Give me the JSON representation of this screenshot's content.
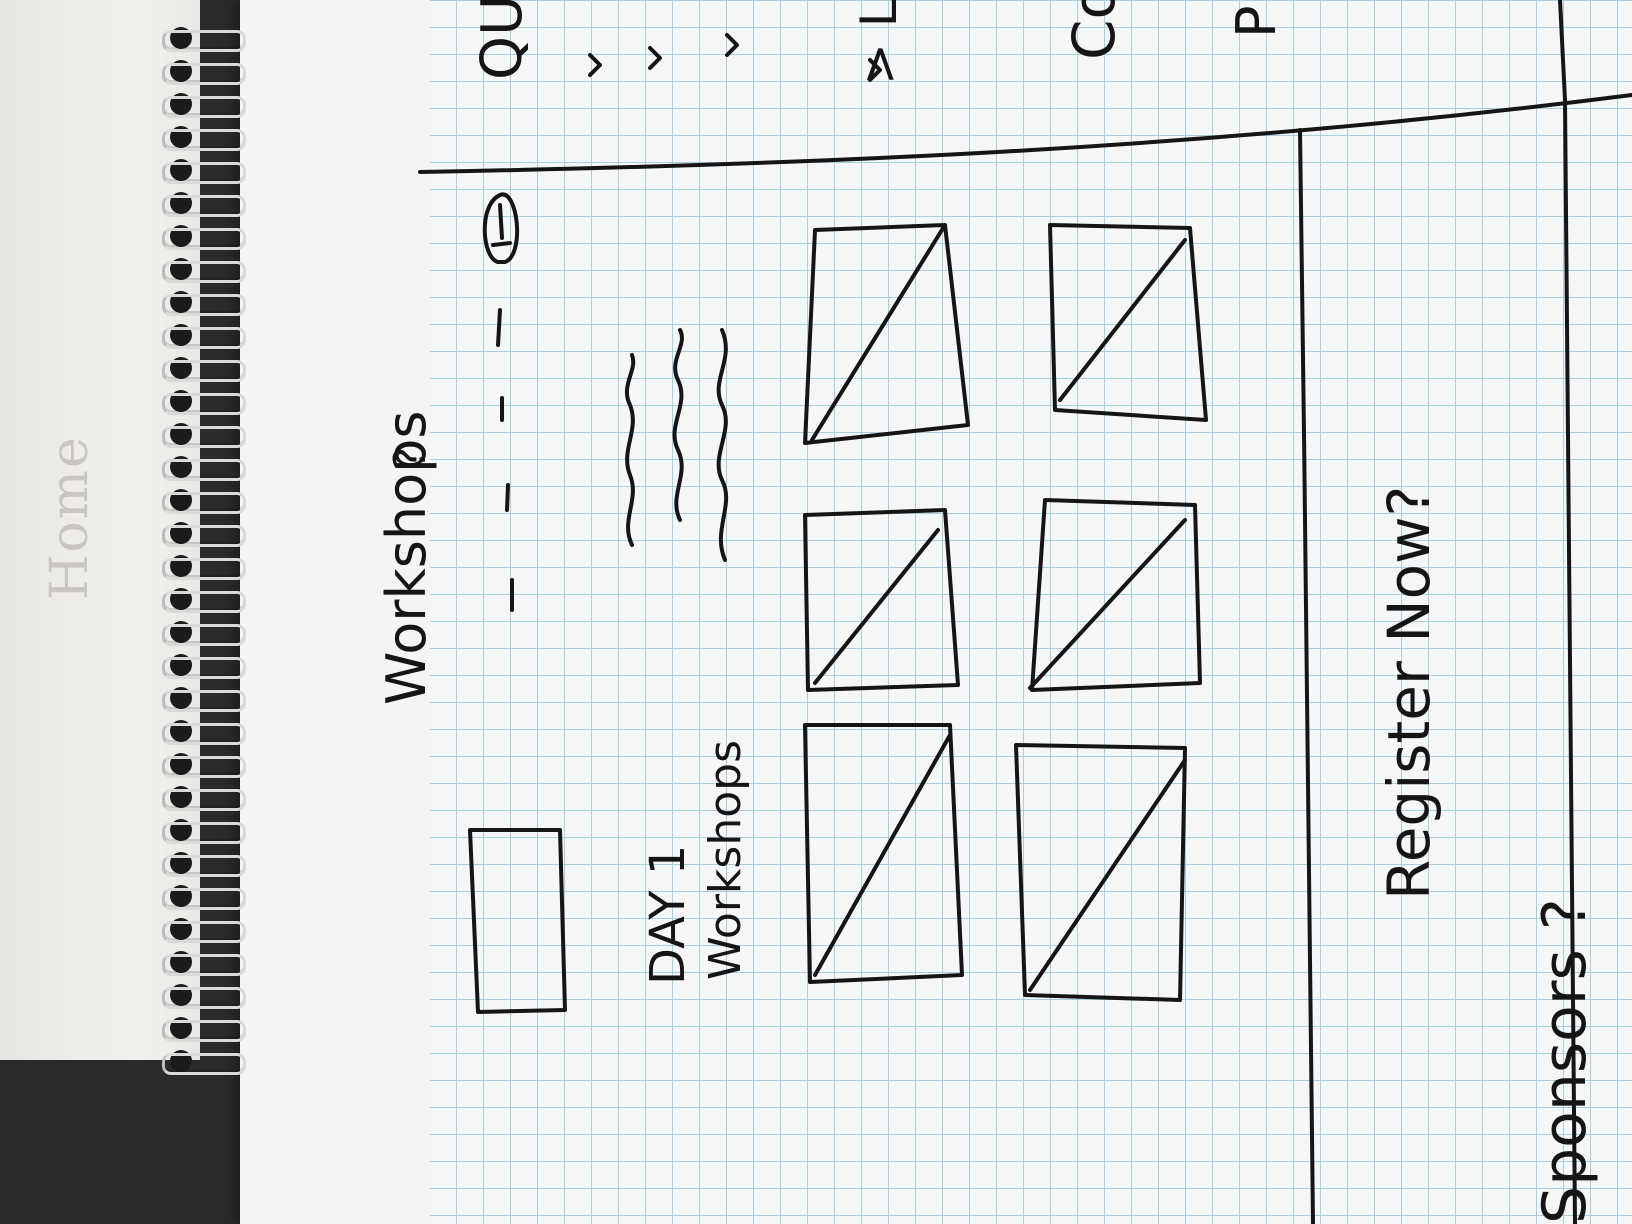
{
  "sketch": {
    "faded_page_word": "Home",
    "section_title": "Workshops",
    "section_title_arrow": "?",
    "day_heading_line1": "DAY 1",
    "day_heading_line2": "Workshops",
    "register_prompt": "Register Now?",
    "sponsors_prompt": "Sponsors ?",
    "cut_off_top_right": "QU",
    "cut_off_mid_right": "Co",
    "cut_off_low_right": "P",
    "cut_off_link": "> L",
    "colors": {
      "ink": "#151515",
      "grid_line": "#a9cfdc",
      "paper": "#f4f6f7"
    }
  }
}
